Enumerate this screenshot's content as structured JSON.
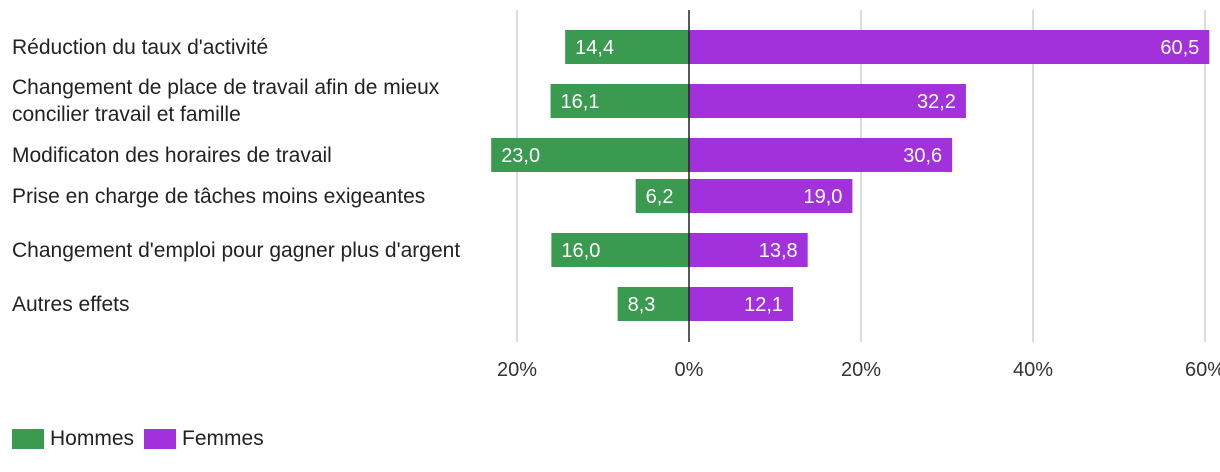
{
  "chart_data": {
    "type": "bar",
    "orientation": "horizontal",
    "diverging": true,
    "categories": [
      "Réduction du taux d'activité",
      "Changement de place de travail afin de mieux concilier travail et famille",
      "Modificaton des horaires de travail",
      "Prise en charge de tâches moins exigeantes",
      "Changement d'emploi pour gagner plus d'argent",
      "Autres effets"
    ],
    "series": [
      {
        "name": "Hommes",
        "color": "#3a9a4f",
        "direction": "left",
        "values": [
          14.4,
          16.1,
          23.0,
          6.2,
          16.0,
          8.3
        ],
        "labels": [
          "14,4",
          "16,1",
          "23,0",
          "6,2",
          "16,0",
          "8,3"
        ]
      },
      {
        "name": "Femmes",
        "color": "#a231dc",
        "direction": "right",
        "values": [
          60.5,
          32.2,
          30.6,
          19.0,
          13.8,
          12.1
        ],
        "labels": [
          "60,5",
          "32,2",
          "30,6",
          "19,0",
          "13,8",
          "12,1"
        ]
      }
    ],
    "xlim": [
      -20,
      60
    ],
    "xticks": [
      {
        "value": -20,
        "label": "20%"
      },
      {
        "value": 0,
        "label": "0%"
      },
      {
        "value": 20,
        "label": "20%"
      },
      {
        "value": 40,
        "label": "40%"
      },
      {
        "value": 60,
        "label": "60%"
      }
    ],
    "grid": true,
    "legend_position": "bottom-left"
  }
}
